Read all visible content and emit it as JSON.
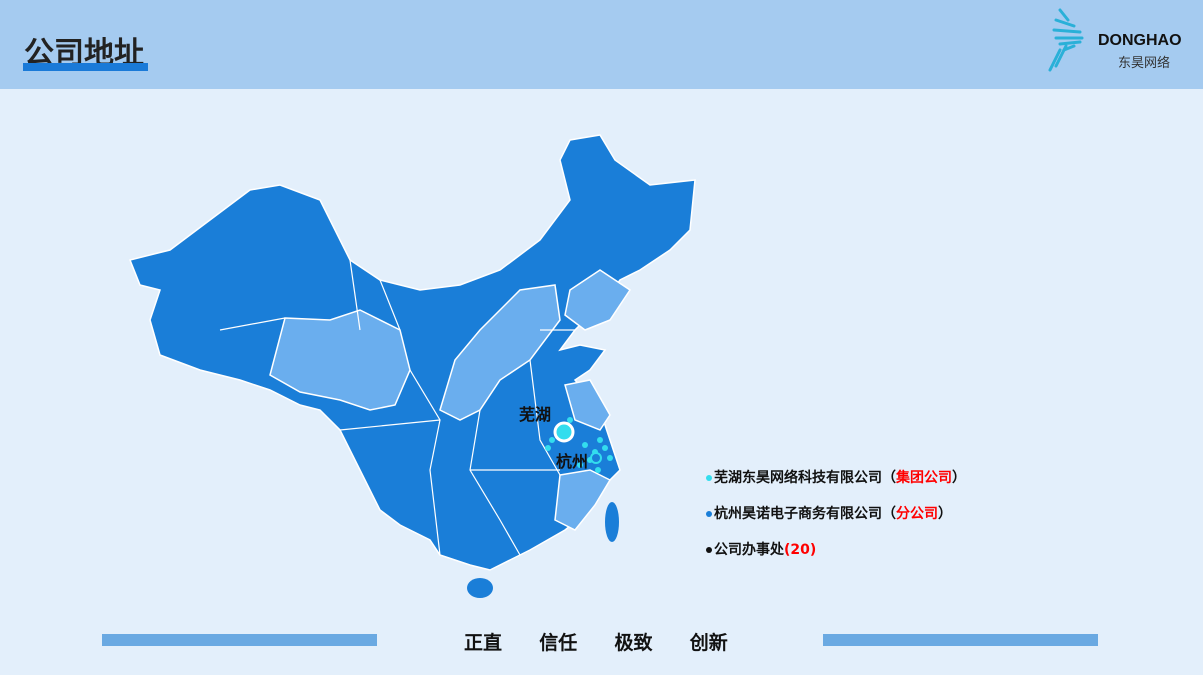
{
  "header": {
    "title": "公司地址",
    "logo_en": "DONGHAO",
    "logo_cn": "东昊网络"
  },
  "map": {
    "cities": [
      {
        "name": "芜湖"
      },
      {
        "name": "杭州"
      }
    ],
    "colors": {
      "region_dark": "#1a7ed8",
      "region_light": "#6aaeee",
      "border": "#ffffff"
    }
  },
  "legend": [
    {
      "name": "芜湖东昊网络科技有限公司",
      "tag": "（集团公司）",
      "tag_inner": "集团公司",
      "dot": "#33ddee"
    },
    {
      "name": "杭州昊诺电子商务有限公司",
      "tag_inner": "分公司",
      "dot": "#1a7ed8"
    },
    {
      "name": "公司办事处",
      "count": "(20)",
      "dot": "#111111"
    }
  ],
  "footer": {
    "motto": "正直  信任  极致  创新"
  },
  "colors": {
    "accent": "#1a7ad8",
    "highlight": "#ff0000"
  }
}
